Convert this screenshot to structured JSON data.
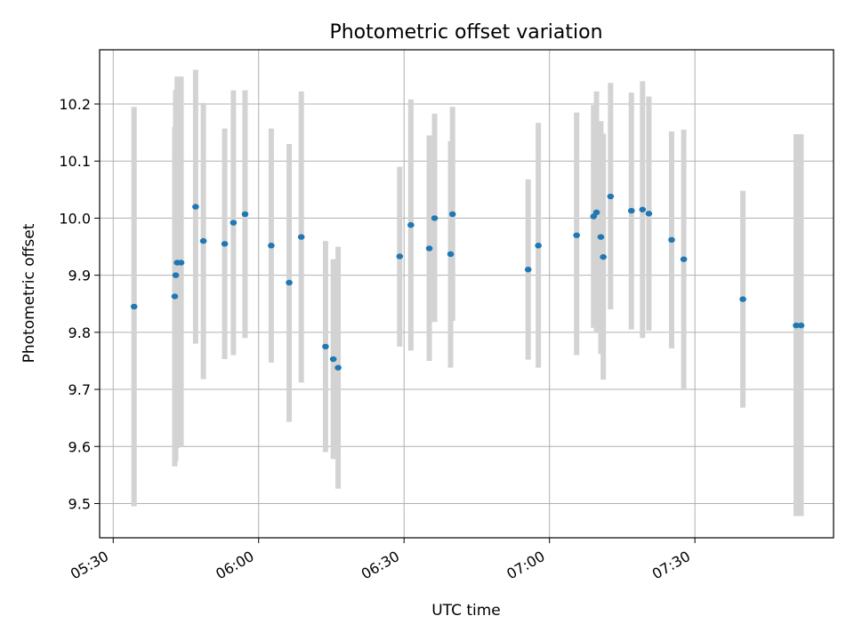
{
  "chart_data": {
    "type": "scatter",
    "title": "Photometric offset variation",
    "xlabel": "UTC time",
    "ylabel": "Photometric offset",
    "x_ticks": [
      "05:30",
      "06:00",
      "06:30",
      "07:00",
      "07:30"
    ],
    "x_tick_minutes": [
      330,
      360,
      390,
      420,
      450
    ],
    "y_ticks": [
      "9.5",
      "9.6",
      "9.7",
      "9.8",
      "9.9",
      "10.0",
      "10.1",
      "10.2"
    ],
    "y_tick_values": [
      9.5,
      9.6,
      9.7,
      9.8,
      9.9,
      10.0,
      10.1,
      10.2
    ],
    "xlim_minutes": [
      327.2,
      478.6
    ],
    "ylim": [
      9.44,
      10.295
    ],
    "grid": true,
    "colors": {
      "points": "#1f77b4",
      "errorbars": "#d3d3d3",
      "grid": "#b0b0b0",
      "axes": "#000000"
    },
    "points": [
      {
        "t": 334.3,
        "y": 9.845,
        "lo": 9.495,
        "hi": 10.195
      },
      {
        "t": 342.7,
        "y": 9.863,
        "lo": 9.565,
        "hi": 10.16
      },
      {
        "t": 342.9,
        "y": 9.9,
        "lo": 9.575,
        "hi": 10.225
      },
      {
        "t": 343.2,
        "y": 9.922,
        "lo": 9.597,
        "hi": 10.248
      },
      {
        "t": 344.0,
        "y": 9.922,
        "lo": 9.6,
        "hi": 10.248
      },
      {
        "t": 347.0,
        "y": 10.02,
        "lo": 9.78,
        "hi": 10.26
      },
      {
        "t": 348.6,
        "y": 9.96,
        "lo": 9.718,
        "hi": 10.202
      },
      {
        "t": 353.0,
        "y": 9.955,
        "lo": 9.753,
        "hi": 10.157
      },
      {
        "t": 354.8,
        "y": 9.992,
        "lo": 9.76,
        "hi": 10.224
      },
      {
        "t": 357.2,
        "y": 10.007,
        "lo": 9.79,
        "hi": 10.224
      },
      {
        "t": 362.6,
        "y": 9.952,
        "lo": 9.747,
        "hi": 10.157
      },
      {
        "t": 366.3,
        "y": 9.887,
        "lo": 9.643,
        "hi": 10.13
      },
      {
        "t": 368.8,
        "y": 9.967,
        "lo": 9.712,
        "hi": 10.222
      },
      {
        "t": 373.8,
        "y": 9.775,
        "lo": 9.59,
        "hi": 9.96
      },
      {
        "t": 375.4,
        "y": 9.753,
        "lo": 9.578,
        "hi": 9.928
      },
      {
        "t": 376.4,
        "y": 9.738,
        "lo": 9.526,
        "hi": 9.95
      },
      {
        "t": 389.1,
        "y": 9.933,
        "lo": 9.775,
        "hi": 10.09
      },
      {
        "t": 391.4,
        "y": 9.988,
        "lo": 9.768,
        "hi": 10.208
      },
      {
        "t": 395.2,
        "y": 9.947,
        "lo": 9.75,
        "hi": 10.145
      },
      {
        "t": 396.3,
        "y": 10.0,
        "lo": 9.818,
        "hi": 10.183
      },
      {
        "t": 399.6,
        "y": 9.937,
        "lo": 9.738,
        "hi": 10.135
      },
      {
        "t": 400.0,
        "y": 10.007,
        "lo": 9.82,
        "hi": 10.195
      },
      {
        "t": 415.6,
        "y": 9.91,
        "lo": 9.752,
        "hi": 10.068
      },
      {
        "t": 417.7,
        "y": 9.952,
        "lo": 9.738,
        "hi": 10.167
      },
      {
        "t": 425.6,
        "y": 9.97,
        "lo": 9.76,
        "hi": 10.185
      },
      {
        "t": 429.1,
        "y": 10.003,
        "lo": 9.808,
        "hi": 10.198
      },
      {
        "t": 429.7,
        "y": 10.01,
        "lo": 9.8,
        "hi": 10.222
      },
      {
        "t": 430.6,
        "y": 9.967,
        "lo": 9.762,
        "hi": 10.17
      },
      {
        "t": 431.1,
        "y": 9.932,
        "lo": 9.717,
        "hi": 10.148
      },
      {
        "t": 432.6,
        "y": 10.038,
        "lo": 9.84,
        "hi": 10.237
      },
      {
        "t": 436.9,
        "y": 10.013,
        "lo": 9.805,
        "hi": 10.22
      },
      {
        "t": 439.2,
        "y": 10.015,
        "lo": 9.79,
        "hi": 10.24
      },
      {
        "t": 440.5,
        "y": 10.008,
        "lo": 9.803,
        "hi": 10.213
      },
      {
        "t": 445.2,
        "y": 9.962,
        "lo": 9.772,
        "hi": 10.152
      },
      {
        "t": 447.7,
        "y": 9.928,
        "lo": 9.7,
        "hi": 10.155
      },
      {
        "t": 459.9,
        "y": 9.858,
        "lo": 9.668,
        "hi": 10.048
      },
      {
        "t": 470.9,
        "y": 9.812,
        "lo": 9.478,
        "hi": 10.147
      },
      {
        "t": 471.9,
        "y": 9.812,
        "lo": 9.478,
        "hi": 10.147
      }
    ]
  }
}
